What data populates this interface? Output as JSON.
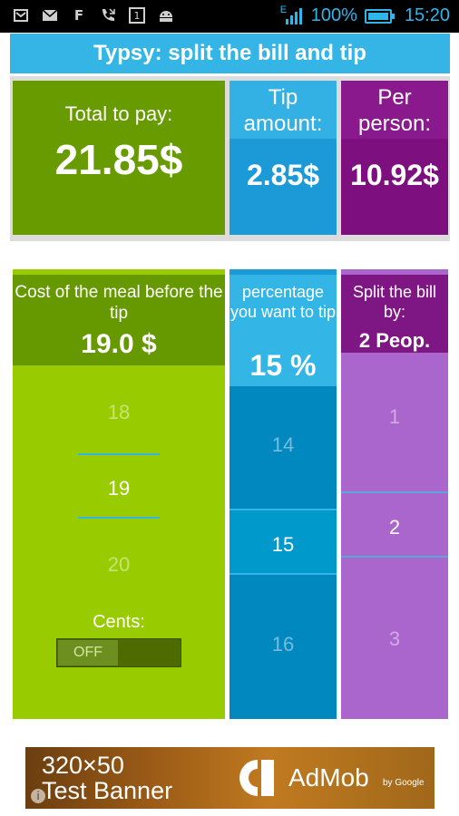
{
  "status_bar": {
    "signal_badge": "E",
    "battery_percent": "100%",
    "time": "15:20",
    "icons": [
      "message-icon",
      "mail-icon",
      "facebook-icon",
      "missed-call-icon",
      "calendar-icon",
      "android-icon"
    ],
    "calendar_day": "1",
    "facebook_glyph": "F",
    "accent_color": "#2fb5ea",
    "battery_level": 1.0
  },
  "app": {
    "title": "Typsy: split the bill and tip"
  },
  "summary": {
    "total_label": "Total to pay:",
    "total_value": "21.85$",
    "tip_label": "Tip amount:",
    "tip_value": "2.85$",
    "per_person_label": "Per person:",
    "per_person_value": "10.92$"
  },
  "meal_picker": {
    "label": "Cost of the meal before the tip",
    "value": "19.0 $",
    "options": [
      "18",
      "19",
      "20"
    ],
    "selected": "19",
    "cents_label": "Cents:",
    "cents_toggle": "OFF"
  },
  "tip_picker": {
    "label": "percentage you want to tip",
    "value": "15 %",
    "options": [
      "14",
      "15",
      "16"
    ],
    "selected": "15"
  },
  "split_picker": {
    "label": "Split the bill by:",
    "value": "2 Peop.",
    "options": [
      "1",
      "2",
      "3"
    ],
    "selected": "2"
  },
  "ad": {
    "line1": "320×50",
    "line2": "Test Banner",
    "brand": "AdMob",
    "by": "by Google",
    "info_glyph": "i"
  },
  "colors": {
    "title_bar": "#35b5e6",
    "green_dark": "#679b00",
    "green_light": "#99cc00",
    "blue": "#1c9ad8",
    "purple_dark": "#7d0f7f",
    "purple_light": "#aa66cc"
  }
}
